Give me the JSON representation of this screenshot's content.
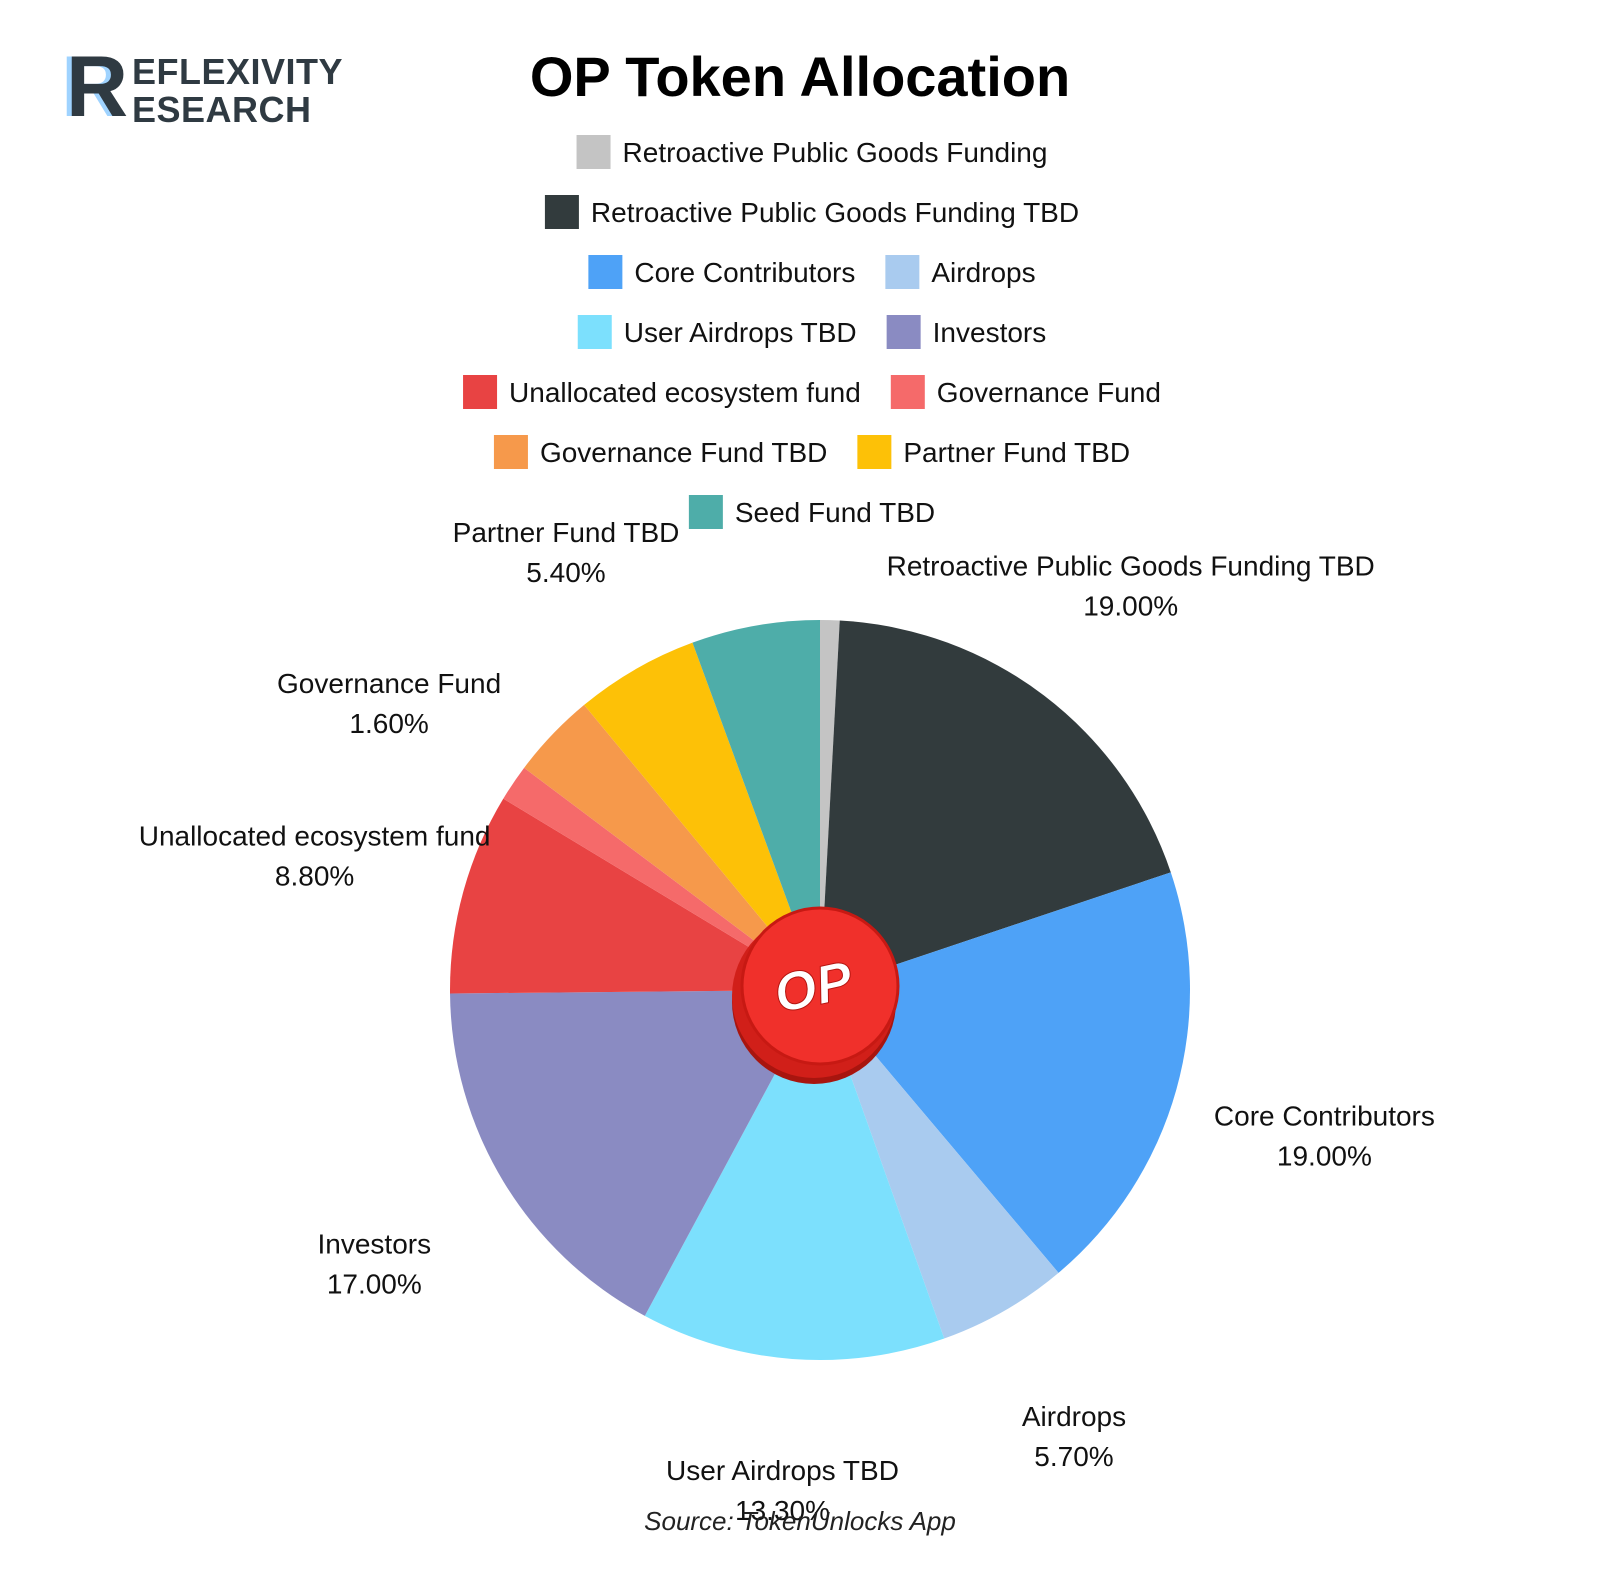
{
  "logo": {
    "initial": "R",
    "line1": "EFLEXIVITY",
    "line2": "ESEARCH"
  },
  "source": "Source: TokenUnlocks App",
  "center_badge": {
    "text": "OP",
    "color": "#f0302b"
  },
  "chart_data": {
    "type": "pie",
    "title": "OP Token Allocation",
    "start_angle_deg": 0,
    "direction": "clockwise",
    "legend_position": "top",
    "legend": [
      [
        "Retroactive Public Goods Funding"
      ],
      [
        "Retroactive Public Goods Funding TBD"
      ],
      [
        "Core Contributors",
        "Airdrops"
      ],
      [
        "User Airdrops TBD",
        "Investors"
      ],
      [
        "Unallocated ecosystem fund",
        "Governance Fund"
      ],
      [
        "Governance Fund TBD",
        "Partner Fund TBD"
      ],
      [
        "Seed Fund TBD"
      ]
    ],
    "slices": [
      {
        "name": "Retroactive Public Goods Funding",
        "value": 0.85,
        "color": "#c4c4c4"
      },
      {
        "name": "Retroactive Public Goods Funding TBD",
        "value": 19.0,
        "label": "19.00%",
        "color": "#323b3d"
      },
      {
        "name": "Core Contributors",
        "value": 19.0,
        "label": "19.00%",
        "color": "#4ea2f7"
      },
      {
        "name": "Airdrops",
        "value": 5.7,
        "label": "5.70%",
        "color": "#a9cbef"
      },
      {
        "name": "User Airdrops TBD",
        "value": 13.3,
        "label": "13.30%",
        "color": "#7ce0fd"
      },
      {
        "name": "Investors",
        "value": 17.0,
        "label": "17.00%",
        "color": "#8a8bc2"
      },
      {
        "name": "Unallocated ecosystem fund",
        "value": 8.8,
        "label": "8.80%",
        "color": "#e84343"
      },
      {
        "name": "Governance Fund",
        "value": 1.6,
        "label": "1.60%",
        "color": "#f56a6a"
      },
      {
        "name": "Governance Fund TBD",
        "value": 3.75,
        "color": "#f6994b"
      },
      {
        "name": "Partner Fund TBD",
        "value": 5.4,
        "label": "5.40%",
        "color": "#fdc107"
      },
      {
        "name": "Seed Fund TBD",
        "value": 5.6,
        "color": "#4eada9"
      }
    ]
  }
}
